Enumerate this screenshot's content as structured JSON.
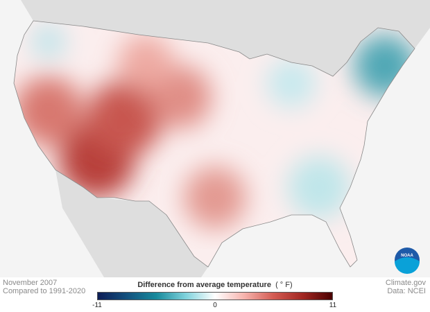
{
  "map": {
    "title": "Difference from average temperature",
    "unit": "( ° F)",
    "region": "Contiguous United States",
    "colorscale": {
      "min": -11,
      "mid": 0,
      "max": 11,
      "colors": [
        "#0d1d56",
        "#178a9c",
        "#ffffff",
        "#d35b52",
        "#4a0000"
      ]
    },
    "ticks": [
      "-11",
      "0",
      "11"
    ]
  },
  "caption": {
    "date": "November 2007",
    "baseline": "Compared to 1991-2020"
  },
  "credits": {
    "site": "Climate.gov",
    "source": "Data: NCEI"
  },
  "logo": {
    "text": "NOAA"
  }
}
